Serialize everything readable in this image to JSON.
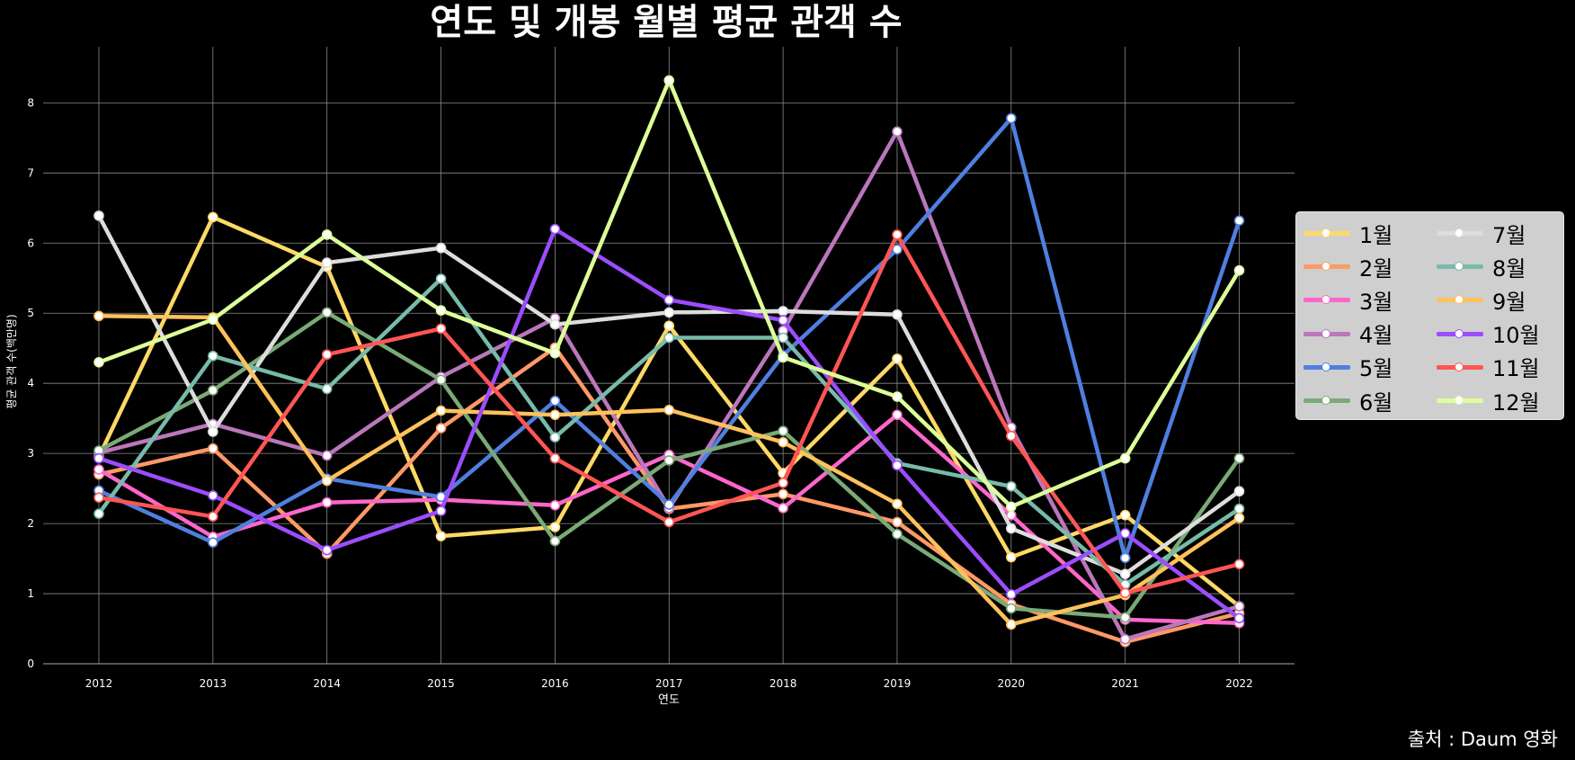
{
  "chart_data": {
    "type": "line",
    "title": "연도 및 개봉 월별 평균 관객 수",
    "xlabel": "연도",
    "ylabel": "평균 관객 수(백만명)",
    "x": [
      "2012",
      "2013",
      "2014",
      "2015",
      "2016",
      "2017",
      "2018",
      "2019",
      "2020",
      "2021",
      "2022"
    ],
    "ylim": [
      0,
      8.8
    ],
    "yticks": [
      "0",
      "1",
      "2",
      "3",
      "4",
      "5",
      "6",
      "7",
      "8"
    ],
    "grid": true,
    "legend_position": "right",
    "series": [
      {
        "name": "1월",
        "color": "#ffd966",
        "values": [
          2.95,
          6.37,
          5.66,
          1.82,
          1.95,
          4.82,
          2.72,
          4.35,
          1.52,
          2.12,
          0.82
        ]
      },
      {
        "name": "2월",
        "color": "#ff9966",
        "values": [
          2.7,
          3.07,
          1.57,
          3.36,
          4.51,
          2.21,
          2.42,
          2.02,
          0.85,
          0.31,
          0.72
        ]
      },
      {
        "name": "3월",
        "color": "#ff66cc",
        "values": [
          2.77,
          1.81,
          2.3,
          2.34,
          2.26,
          2.98,
          2.22,
          3.55,
          2.12,
          0.63,
          0.58
        ]
      },
      {
        "name": "4월",
        "color": "#bb77bb",
        "values": [
          3.01,
          3.42,
          2.97,
          4.09,
          4.93,
          2.22,
          4.75,
          7.59,
          3.37,
          0.35,
          0.82
        ]
      },
      {
        "name": "5월",
        "color": "#4f7fe0",
        "values": [
          2.47,
          1.73,
          2.64,
          2.38,
          3.75,
          2.27,
          4.4,
          5.91,
          7.78,
          1.51,
          6.32
        ]
      },
      {
        "name": "6월",
        "color": "#7aaa77",
        "values": [
          3.04,
          3.9,
          5.01,
          4.05,
          1.75,
          2.9,
          3.32,
          1.85,
          0.79,
          0.66,
          2.93
        ]
      },
      {
        "name": "7월",
        "color": "#dddddd",
        "values": [
          6.39,
          3.31,
          5.72,
          5.93,
          4.84,
          5.01,
          5.03,
          4.98,
          1.93,
          1.28,
          2.46
        ]
      },
      {
        "name": "8월",
        "color": "#77bbaa",
        "values": [
          2.14,
          4.39,
          3.92,
          5.49,
          3.23,
          4.65,
          4.65,
          2.86,
          2.53,
          1.13,
          2.21
        ]
      },
      {
        "name": "9월",
        "color": "#ffc15c",
        "values": [
          4.96,
          4.94,
          2.61,
          3.61,
          3.55,
          3.62,
          3.16,
          2.28,
          0.56,
          0.98,
          2.08
        ]
      },
      {
        "name": "10월",
        "color": "#9b4dff",
        "values": [
          2.93,
          2.4,
          1.62,
          2.18,
          6.2,
          5.19,
          4.9,
          2.83,
          0.99,
          1.86,
          0.65
        ]
      },
      {
        "name": "11월",
        "color": "#ff5555",
        "values": [
          2.37,
          2.1,
          4.41,
          4.78,
          2.93,
          2.02,
          2.58,
          6.12,
          3.25,
          1.01,
          1.42
        ]
      },
      {
        "name": "12월",
        "color": "#ddff99",
        "values": [
          4.3,
          4.91,
          6.12,
          5.04,
          4.43,
          8.32,
          4.37,
          3.81,
          2.24,
          2.93,
          5.61
        ]
      }
    ]
  },
  "source_text": "출처 : Daum 영화"
}
